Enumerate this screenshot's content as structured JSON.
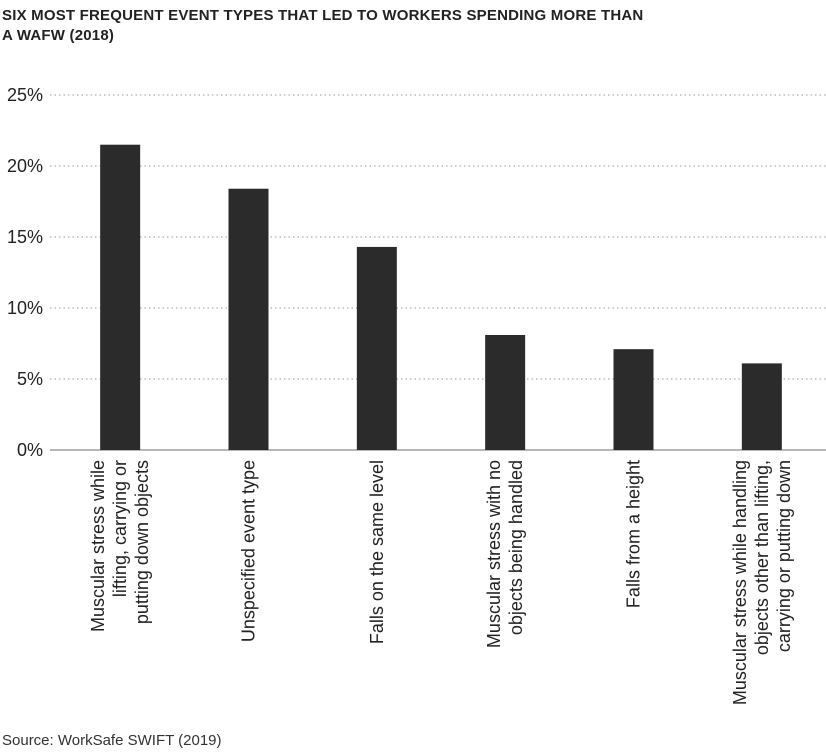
{
  "chart_data": {
    "type": "bar",
    "title_lines": [
      "SIX MOST FREQUENT EVENT TYPES THAT LED TO WORKERS SPENDING MORE THAN",
      "A WAFW (2018)"
    ],
    "categories": [
      [
        "Muscular stress while",
        "lifting, carrying or",
        "putting down objects"
      ],
      [
        "Unspecified event type"
      ],
      [
        "Falls on the same level"
      ],
      [
        "Muscular stress with no",
        "objects being handled"
      ],
      [
        "Falls from a height"
      ],
      [
        "Muscular stress while handling",
        "objects other than lifting,",
        "carrying or putting down"
      ]
    ],
    "values": [
      21.5,
      18.4,
      14.3,
      8.1,
      7.1,
      6.1
    ],
    "yticks": [
      "0%",
      "5%",
      "10%",
      "15%",
      "20%",
      "25%"
    ],
    "ylim": [
      0,
      25
    ],
    "grid": true,
    "bar_color": "#2b2b2b",
    "grid_color": "#9a9a9a"
  },
  "source": "Source: WorkSafe SWIFT (2019)"
}
